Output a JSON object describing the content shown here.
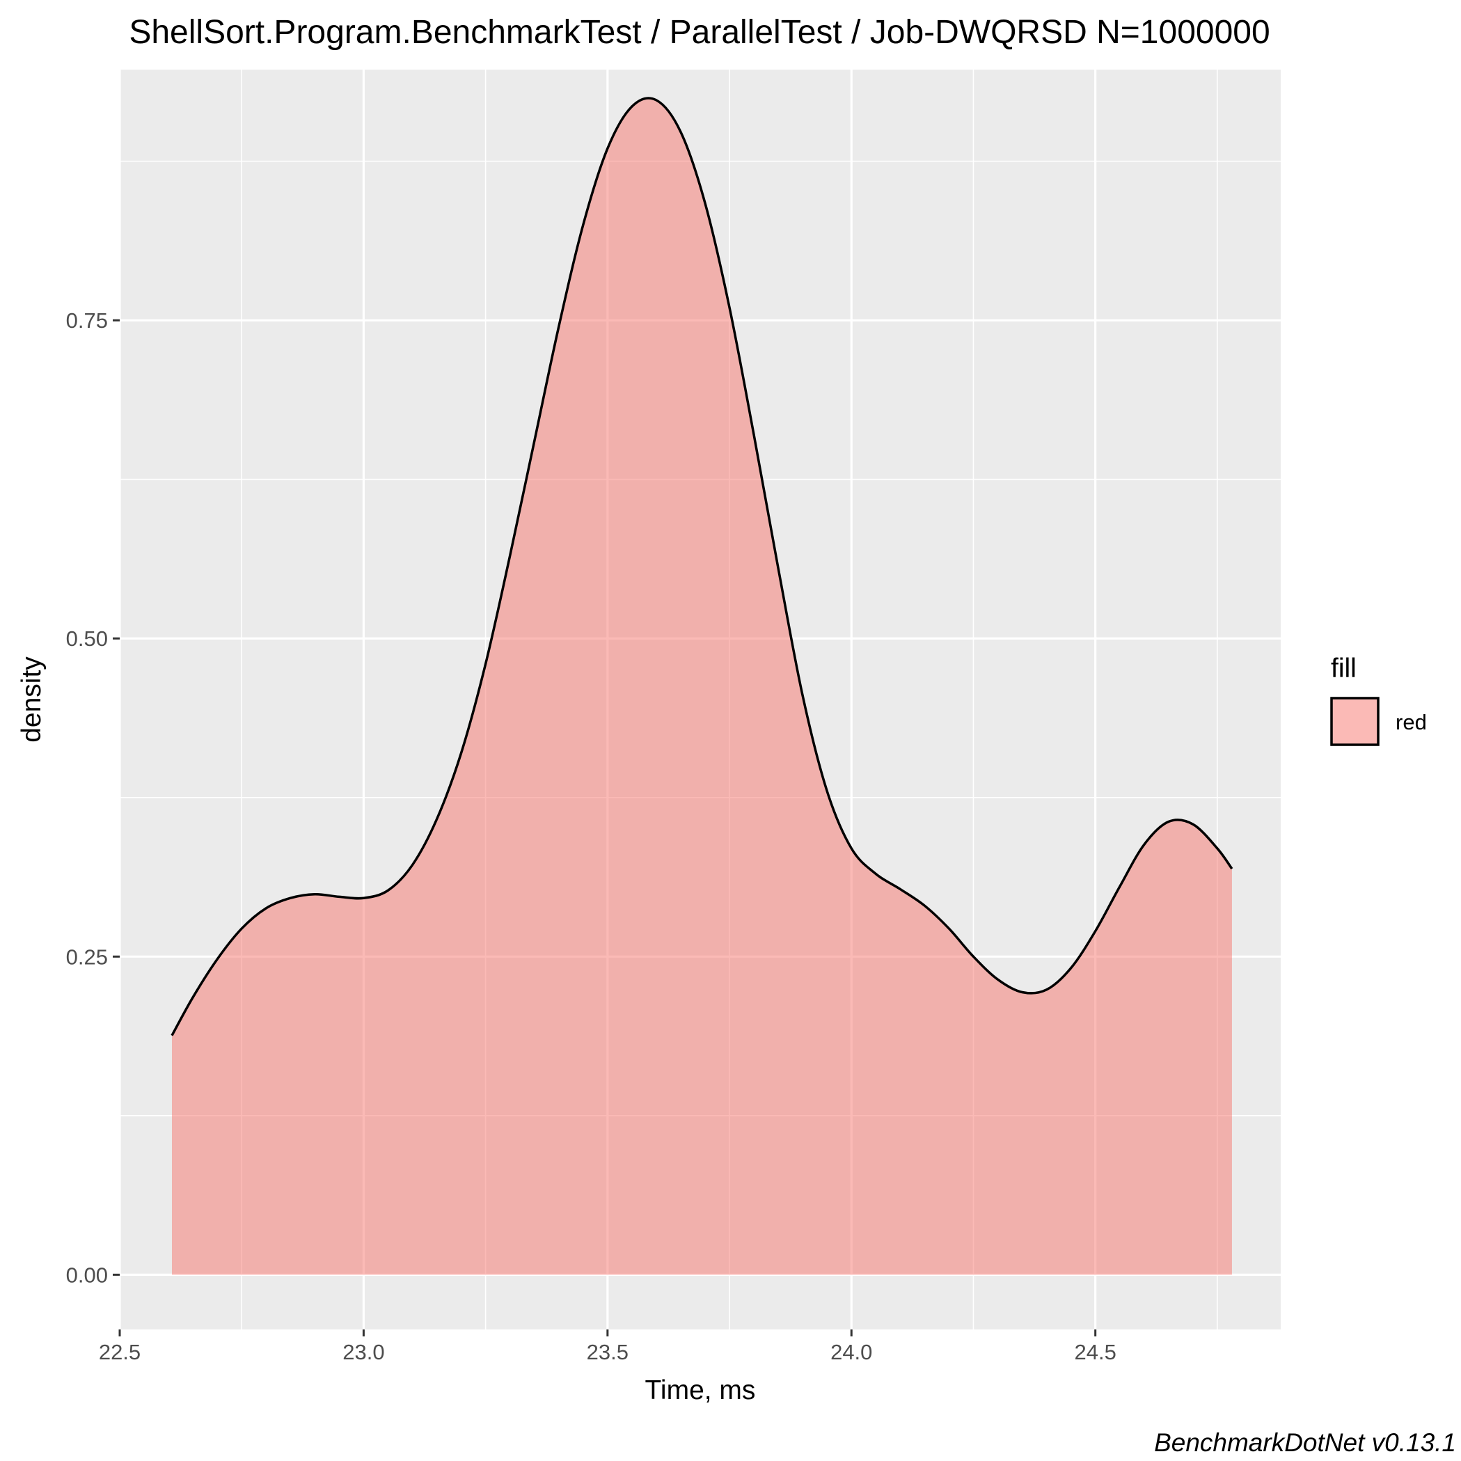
{
  "chart_data": {
    "type": "area",
    "title": "ShellSort.Program.BenchmarkTest / ParallelTest / Job-DWQRSD N=1000000",
    "xlabel": "Time, ms",
    "ylabel": "density",
    "xlim": [
      22.5,
      24.88
    ],
    "ylim": [
      -0.043,
      0.947
    ],
    "x_ticks": [
      22.5,
      23.0,
      23.5,
      24.0,
      24.5
    ],
    "x_tick_labels": [
      "22.5",
      "23.0",
      "23.5",
      "24.0",
      "24.5"
    ],
    "y_ticks": [
      0.0,
      0.25,
      0.5,
      0.75
    ],
    "y_tick_labels": [
      "0.00",
      "0.25",
      "0.50",
      "0.75"
    ],
    "grid": true,
    "legend": {
      "title": "fill",
      "position": "right",
      "entries": [
        "red"
      ]
    },
    "series": [
      {
        "fill": "#f8766d",
        "fill_opacity": 0.5,
        "stroke": "#000000",
        "x": [
          22.607,
          22.65,
          22.7,
          22.75,
          22.8,
          22.85,
          22.9,
          22.95,
          23.0,
          23.05,
          23.1,
          23.15,
          23.2,
          23.25,
          23.3,
          23.35,
          23.4,
          23.45,
          23.5,
          23.55,
          23.6,
          23.65,
          23.7,
          23.75,
          23.8,
          23.85,
          23.9,
          23.95,
          24.0,
          24.05,
          24.1,
          24.15,
          24.2,
          24.25,
          24.3,
          24.35,
          24.4,
          24.45,
          24.5,
          24.55,
          24.6,
          24.65,
          24.7,
          24.75,
          24.78
        ],
        "y": [
          0.188,
          0.218,
          0.248,
          0.272,
          0.288,
          0.296,
          0.299,
          0.297,
          0.296,
          0.302,
          0.322,
          0.358,
          0.41,
          0.48,
          0.565,
          0.655,
          0.745,
          0.825,
          0.885,
          0.918,
          0.923,
          0.898,
          0.842,
          0.76,
          0.66,
          0.555,
          0.455,
          0.38,
          0.335,
          0.315,
          0.303,
          0.29,
          0.272,
          0.25,
          0.232,
          0.222,
          0.224,
          0.241,
          0.27,
          0.305,
          0.338,
          0.356,
          0.354,
          0.335,
          0.319
        ]
      }
    ]
  },
  "caption": "BenchmarkDotNet v0.13.1"
}
